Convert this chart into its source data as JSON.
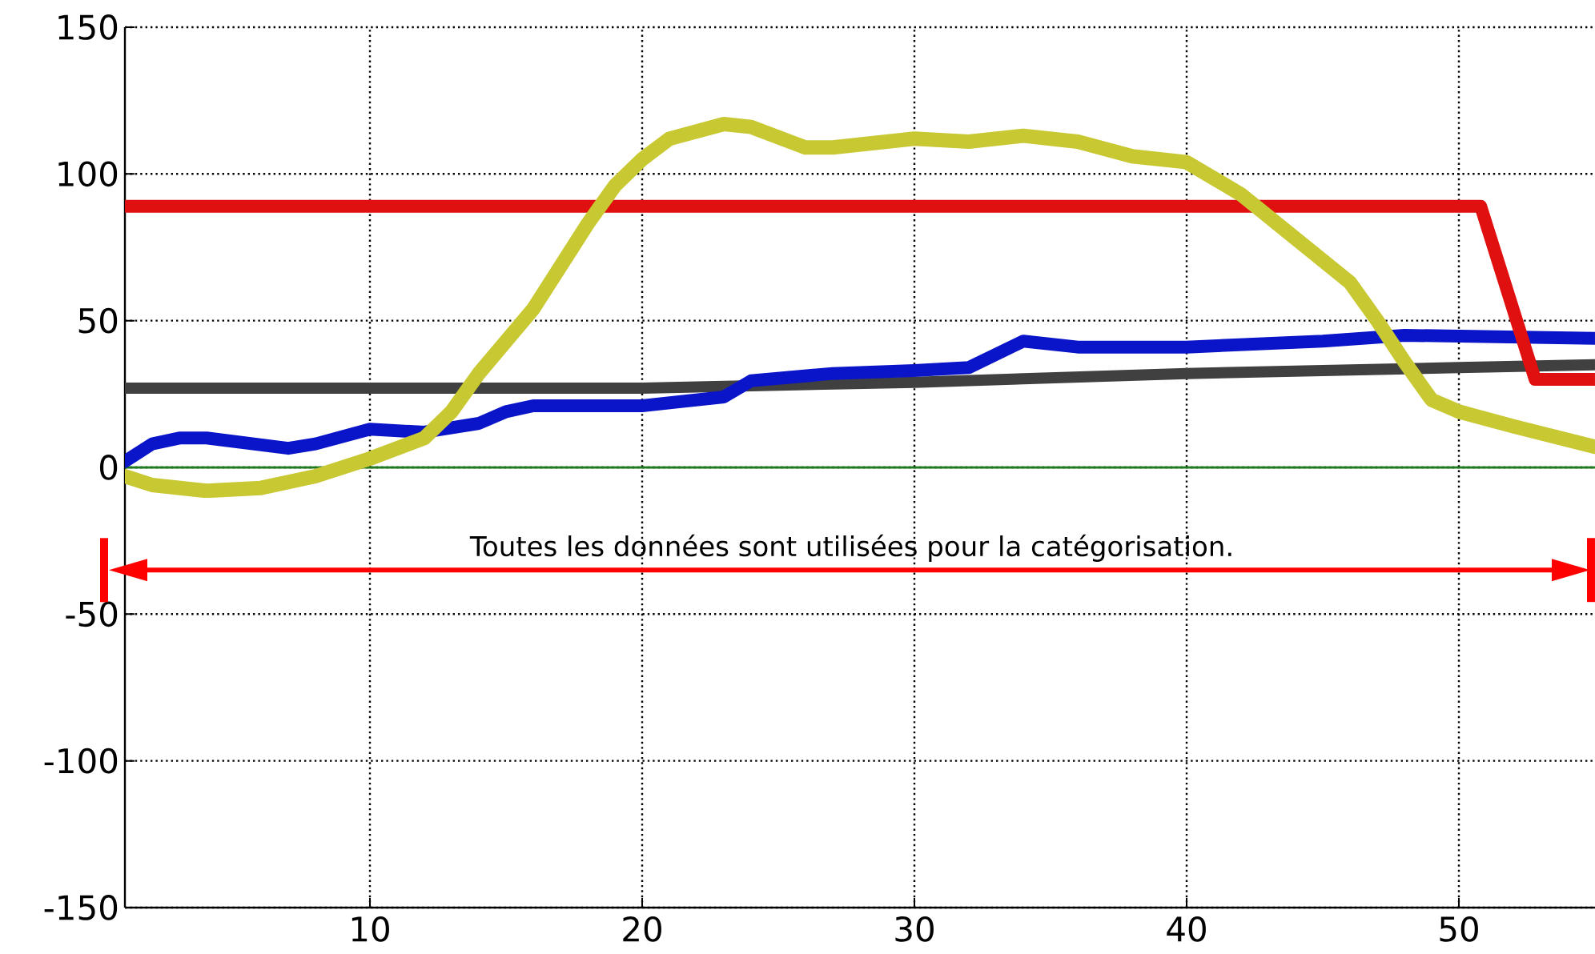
{
  "chart_data": {
    "type": "line",
    "xlim": [
      1,
      55
    ],
    "ylim": [
      -150,
      150
    ],
    "xticks": [
      10,
      20,
      30,
      40,
      50
    ],
    "yticks": [
      -150,
      -100,
      -50,
      0,
      50,
      100,
      150
    ],
    "grid": true,
    "line_style": "solid",
    "marker": "none",
    "ref_lines": [
      {
        "axis": "y",
        "value": 0,
        "color": "#1e7a1e"
      },
      {
        "axis": "y",
        "value": -35,
        "color": "#ff0000",
        "label": "Toutes les données sont utilisées pour la catégorisation."
      }
    ],
    "series": [
      {
        "color": "#404040",
        "x": [
          1,
          10,
          20,
          30,
          40,
          50,
          55
        ],
        "values": [
          27,
          27,
          27,
          29,
          32,
          34,
          35
        ]
      },
      {
        "color": "#0a14c8",
        "x": [
          1,
          2,
          3,
          4,
          7,
          8,
          10,
          12,
          14,
          15,
          16,
          20,
          23,
          24,
          27,
          30,
          32,
          34,
          36,
          40,
          45,
          48,
          55
        ],
        "values": [
          2,
          8,
          10,
          10,
          6.5,
          8,
          13,
          12,
          15,
          19,
          21,
          21,
          24,
          29.5,
          32,
          33,
          34,
          43,
          41,
          41,
          43,
          45,
          44
        ]
      },
      {
        "color": "#e01010",
        "x": [
          1,
          50.8,
          52.8,
          55
        ],
        "values": [
          89,
          89,
          30,
          30
        ]
      },
      {
        "color": "#c8c832",
        "x": [
          1,
          2,
          4,
          6,
          8,
          10,
          12,
          13,
          14,
          16,
          18,
          19,
          20,
          21,
          23,
          24,
          26,
          27,
          30,
          32,
          34,
          36,
          38,
          40,
          42,
          44,
          46,
          47,
          48,
          49,
          50,
          52,
          55
        ],
        "values": [
          -3,
          -6,
          -8,
          -7,
          -3,
          3,
          10,
          19,
          32,
          54,
          83,
          96,
          105,
          112,
          117,
          116,
          109,
          109,
          112,
          111,
          113,
          111,
          106,
          104,
          93,
          78,
          63,
          50,
          36,
          23,
          19,
          14,
          7
        ]
      }
    ]
  }
}
